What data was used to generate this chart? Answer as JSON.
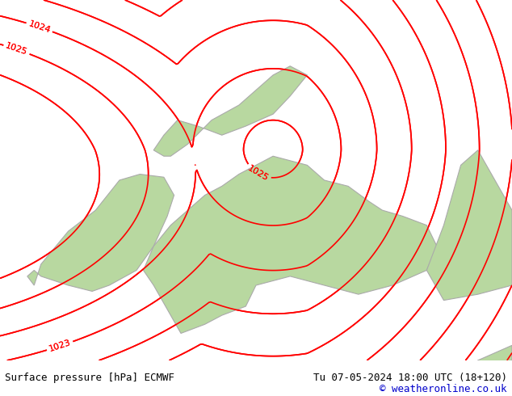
{
  "title_left": "Surface pressure [hPa] ECMWF",
  "title_right": "Tu 07-05-2024 18:00 UTC (18+120)",
  "copyright": "© weatheronline.co.uk",
  "background_color": "#e8e8e8",
  "land_color": "#b8d8a0",
  "border_color": "#aaaaaa",
  "contour_color": "#ff0000",
  "contour_levels": [
    1016,
    1017,
    1018,
    1019,
    1020,
    1021,
    1022,
    1023,
    1024,
    1025,
    1026
  ],
  "label_levels": [
    1023,
    1024,
    1025
  ],
  "bottom_bar_color": "#d0d0d0",
  "text_color": "#000000",
  "link_color": "#0000cc",
  "figsize": [
    6.34,
    4.9
  ],
  "dpi": 100
}
